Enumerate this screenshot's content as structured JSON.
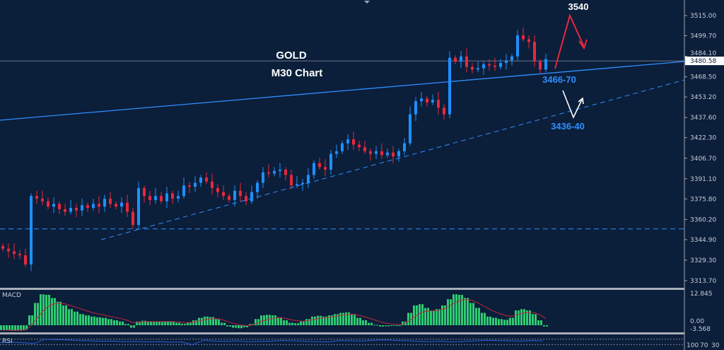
{
  "chart_data": [
    {
      "type": "candlestick",
      "title": "GOLD",
      "subtitle": "M30 Chart",
      "ylim": [
        3306,
        3527
      ],
      "y_ticks": [
        "3515.00",
        "3499.70",
        "3484.10",
        "3468.50",
        "3453.20",
        "3437.60",
        "3422.30",
        "3406.70",
        "3391.10",
        "3375.80",
        "3360.20",
        "3344.90",
        "3329.30",
        "3313.70"
      ],
      "current_price": "3480.58",
      "colors": {
        "up": "#1e90ff",
        "down": "#e8283c",
        "background": "#0b1e3a",
        "trendline": "#2f8fff"
      },
      "closes": [
        3338,
        3336,
        3334,
        3333,
        3326,
        3378,
        3376,
        3374,
        3370,
        3372,
        3368,
        3366,
        3369,
        3367,
        3371,
        3369,
        3372,
        3370,
        3376,
        3372,
        3370,
        3373,
        3366,
        3356,
        3384,
        3378,
        3375,
        3378,
        3374,
        3380,
        3376,
        3378,
        3386,
        3385,
        3388,
        3392,
        3389,
        3384,
        3381,
        3378,
        3375,
        3382,
        3378,
        3374,
        3381,
        3388,
        3396,
        3395,
        3397,
        3398,
        3394,
        3386,
        3387,
        3388,
        3394,
        3403,
        3400,
        3398,
        3410,
        3412,
        3418,
        3421,
        3417,
        3415,
        3412,
        3410,
        3412,
        3409,
        3411,
        3408,
        3412,
        3418,
        3440,
        3450,
        3452,
        3449,
        3451,
        3445,
        3440,
        3483,
        3480,
        3484,
        3476,
        3474,
        3475,
        3478,
        3477,
        3476,
        3479,
        3481,
        3484,
        3500,
        3497,
        3495,
        3480,
        3474,
        3482
      ],
      "horizontal_support": 3353,
      "annotations": [
        {
          "text": "3540",
          "color": "#ffffff"
        },
        {
          "text": "3466-70",
          "color": "#2f8fff"
        },
        {
          "text": "3436-40",
          "color": "#2f8fff"
        }
      ]
    },
    {
      "type": "bar",
      "indicator": "MACD",
      "y_ticks": [
        "12.845",
        "0.00",
        "-3.568"
      ],
      "ylim": [
        -3.568,
        12.845
      ],
      "colors": {
        "histogram": "#2ecc71",
        "signal": "#c0283c"
      },
      "histogram": [
        -2,
        -2,
        -2.2,
        -2,
        -1.8,
        4,
        9,
        12.5,
        12.3,
        11,
        9.5,
        8,
        6.5,
        5.5,
        4.5,
        4,
        3.5,
        3.2,
        3,
        2.5,
        2,
        1.5,
        0.5,
        -1,
        1.5,
        1.8,
        1.6,
        1.5,
        1.4,
        1.6,
        1.5,
        1,
        0.6,
        1,
        2,
        3,
        3.5,
        3.3,
        2.5,
        1,
        -0.5,
        -1,
        -1.2,
        -0.8,
        0.5,
        2.5,
        4,
        4.2,
        4,
        3.2,
        2,
        1,
        0.8,
        1.5,
        2.5,
        3.5,
        3.8,
        3.5,
        4,
        4.5,
        5,
        5.2,
        4.5,
        3,
        2,
        1,
        0.2,
        -0.5,
        -0.4,
        -0.2,
        0,
        1.5,
        5,
        8,
        8.5,
        7,
        6,
        6.5,
        8,
        10.5,
        12.5,
        12.3,
        11,
        9,
        7,
        5,
        3.5,
        3,
        2.5,
        2.2,
        3,
        6,
        6.5,
        6,
        4.5,
        2,
        -0.5
      ]
    },
    {
      "type": "line",
      "indicator": "RSI",
      "y_ticks": [
        "100",
        "70",
        "30"
      ],
      "ylim": [
        0,
        100
      ],
      "colors": {
        "line": "#2a5fd8"
      },
      "values": [
        45,
        48,
        44,
        38,
        70,
        66,
        64,
        60,
        58,
        55,
        56,
        52,
        54,
        50,
        52,
        48,
        50,
        30,
        62,
        56,
        55,
        58,
        52,
        54,
        56,
        60,
        58,
        55,
        52,
        50,
        60,
        58,
        56,
        62,
        64,
        60,
        58,
        55,
        52,
        56,
        50,
        54,
        58,
        62,
        60,
        58,
        56,
        60,
        58
      ]
    }
  ]
}
